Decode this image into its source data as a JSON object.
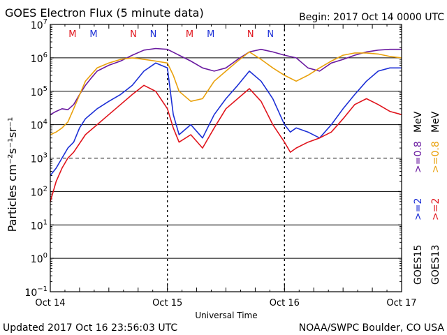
{
  "header": {
    "title": "GOES Electron Flux (5 minute data)",
    "begin": "Begin: 2017 Oct 14 0000 UTC"
  },
  "footer": {
    "updated": "Updated 2017 Oct 16 23:56:03 UTC",
    "credit": "NOAA/SWPC Boulder, CO USA"
  },
  "legend": {
    "goes15": "GOES15",
    "goes13": "GOES13",
    "ge2_15": ">=2",
    "ge2_13": ">=2",
    "ge08_15": ">=0.8",
    "ge08_13": ">=0.8",
    "mev": "MeV"
  },
  "colors": {
    "goes15_ge2": "#1c2fd6",
    "goes13_ge2": "#e0141c",
    "goes15_ge08": "#6a1aa0",
    "goes13_ge08": "#e9a10c",
    "axes": "#000000",
    "background": "#ffffff"
  },
  "chart_data": {
    "type": "line",
    "title": "GOES Electron Flux (5 minute data)",
    "xlabel": "Universal Time",
    "ylabel": "Particles cm⁻²s⁻¹sr⁻¹",
    "x_ticks": [
      "Oct 14",
      "Oct 15",
      "Oct 16",
      "Oct 17"
    ],
    "xlim_days": [
      0,
      3
    ],
    "yscale": "log",
    "ylim": [
      0.1,
      10000000
    ],
    "y_ticks": [
      {
        "base": "10",
        "exp": "7"
      },
      {
        "base": "10",
        "exp": "6"
      },
      {
        "base": "10",
        "exp": "5"
      },
      {
        "base": "10",
        "exp": "4"
      },
      {
        "base": "10",
        "exp": "3"
      },
      {
        "base": "10",
        "exp": "2"
      },
      {
        "base": "10",
        "exp": "1"
      },
      {
        "base": "10",
        "exp": "0"
      },
      {
        "base": "10",
        "exp": "−1"
      }
    ],
    "threshold": 1000,
    "grid": "horizontal at each decade; dashed at 10^3",
    "markers": [
      {
        "label": "M",
        "day": 0.19,
        "color": "#e0141c"
      },
      {
        "label": "M",
        "day": 0.37,
        "color": "#1c2fd6"
      },
      {
        "label": "N",
        "day": 0.71,
        "color": "#e0141c"
      },
      {
        "label": "N",
        "day": 0.88,
        "color": "#1c2fd6"
      },
      {
        "label": "M",
        "day": 1.19,
        "color": "#e0141c"
      },
      {
        "label": "M",
        "day": 1.37,
        "color": "#1c2fd6"
      },
      {
        "label": "N",
        "day": 1.71,
        "color": "#e0141c"
      },
      {
        "label": "N",
        "day": 1.88,
        "color": "#1c2fd6"
      }
    ],
    "series": [
      {
        "name": "GOES15 >=0.8 MeV",
        "color": "#6a1aa0",
        "points": [
          [
            0,
            20000
          ],
          [
            0.05,
            25000
          ],
          [
            0.1,
            30000
          ],
          [
            0.15,
            28000
          ],
          [
            0.2,
            40000
          ],
          [
            0.25,
            80000
          ],
          [
            0.3,
            150000
          ],
          [
            0.35,
            250000
          ],
          [
            0.4,
            400000
          ],
          [
            0.5,
            600000
          ],
          [
            0.6,
            800000
          ],
          [
            0.7,
            1200000
          ],
          [
            0.8,
            1700000
          ],
          [
            0.9,
            1900000
          ],
          [
            1.0,
            1800000
          ],
          [
            1.1,
            1200000
          ],
          [
            1.2,
            800000
          ],
          [
            1.3,
            500000
          ],
          [
            1.4,
            400000
          ],
          [
            1.5,
            500000
          ],
          [
            1.6,
            900000
          ],
          [
            1.7,
            1500000
          ],
          [
            1.8,
            1800000
          ],
          [
            1.9,
            1500000
          ],
          [
            2.0,
            1200000
          ],
          [
            2.1,
            1000000
          ],
          [
            2.2,
            500000
          ],
          [
            2.3,
            400000
          ],
          [
            2.4,
            700000
          ],
          [
            2.5,
            900000
          ],
          [
            2.6,
            1200000
          ],
          [
            2.7,
            1500000
          ],
          [
            2.8,
            1700000
          ],
          [
            2.9,
            1800000
          ],
          [
            3.0,
            1800000
          ]
        ]
      },
      {
        "name": "GOES13 >=0.8 MeV",
        "color": "#e9a10c",
        "points": [
          [
            0,
            5000
          ],
          [
            0.05,
            6000
          ],
          [
            0.1,
            8000
          ],
          [
            0.15,
            12000
          ],
          [
            0.2,
            30000
          ],
          [
            0.3,
            200000
          ],
          [
            0.4,
            500000
          ],
          [
            0.5,
            700000
          ],
          [
            0.6,
            900000
          ],
          [
            0.7,
            1000000
          ],
          [
            0.8,
            900000
          ],
          [
            0.9,
            800000
          ],
          [
            1.0,
            700000
          ],
          [
            1.05,
            300000
          ],
          [
            1.1,
            100000
          ],
          [
            1.2,
            50000
          ],
          [
            1.3,
            60000
          ],
          [
            1.4,
            200000
          ],
          [
            1.5,
            400000
          ],
          [
            1.6,
            800000
          ],
          [
            1.7,
            1500000
          ],
          [
            1.8,
            900000
          ],
          [
            1.9,
            500000
          ],
          [
            2.0,
            300000
          ],
          [
            2.1,
            200000
          ],
          [
            2.2,
            300000
          ],
          [
            2.3,
            500000
          ],
          [
            2.4,
            800000
          ],
          [
            2.5,
            1200000
          ],
          [
            2.6,
            1400000
          ],
          [
            2.7,
            1400000
          ],
          [
            2.8,
            1300000
          ],
          [
            2.9,
            1100000
          ],
          [
            3.0,
            1000000
          ]
        ]
      },
      {
        "name": "GOES15 >=2 MeV",
        "color": "#1c2fd6",
        "points": [
          [
            0,
            300
          ],
          [
            0.05,
            500
          ],
          [
            0.1,
            1000
          ],
          [
            0.15,
            2000
          ],
          [
            0.2,
            3000
          ],
          [
            0.25,
            8000
          ],
          [
            0.3,
            15000
          ],
          [
            0.4,
            30000
          ],
          [
            0.5,
            50000
          ],
          [
            0.6,
            80000
          ],
          [
            0.7,
            150000
          ],
          [
            0.8,
            400000
          ],
          [
            0.9,
            700000
          ],
          [
            1.0,
            500000
          ],
          [
            1.05,
            20000
          ],
          [
            1.1,
            5000
          ],
          [
            1.2,
            10000
          ],
          [
            1.3,
            4000
          ],
          [
            1.4,
            20000
          ],
          [
            1.5,
            60000
          ],
          [
            1.6,
            150000
          ],
          [
            1.7,
            400000
          ],
          [
            1.8,
            200000
          ],
          [
            1.9,
            60000
          ],
          [
            2.0,
            10000
          ],
          [
            2.05,
            6000
          ],
          [
            2.1,
            8000
          ],
          [
            2.2,
            6000
          ],
          [
            2.3,
            4000
          ],
          [
            2.4,
            10000
          ],
          [
            2.5,
            30000
          ],
          [
            2.6,
            80000
          ],
          [
            2.7,
            200000
          ],
          [
            2.8,
            400000
          ],
          [
            2.9,
            500000
          ],
          [
            3.0,
            500000
          ]
        ]
      },
      {
        "name": "GOES13 >=2 MeV",
        "color": "#e0141c",
        "points": [
          [
            0,
            50
          ],
          [
            0.05,
            200
          ],
          [
            0.1,
            500
          ],
          [
            0.15,
            1000
          ],
          [
            0.2,
            1500
          ],
          [
            0.3,
            5000
          ],
          [
            0.4,
            10000
          ],
          [
            0.5,
            20000
          ],
          [
            0.6,
            40000
          ],
          [
            0.7,
            80000
          ],
          [
            0.8,
            150000
          ],
          [
            0.9,
            100000
          ],
          [
            1.0,
            30000
          ],
          [
            1.05,
            8000
          ],
          [
            1.1,
            3000
          ],
          [
            1.2,
            5000
          ],
          [
            1.3,
            2000
          ],
          [
            1.4,
            8000
          ],
          [
            1.5,
            30000
          ],
          [
            1.6,
            60000
          ],
          [
            1.7,
            120000
          ],
          [
            1.8,
            50000
          ],
          [
            1.9,
            10000
          ],
          [
            2.0,
            3000
          ],
          [
            2.05,
            1500
          ],
          [
            2.1,
            2000
          ],
          [
            2.2,
            3000
          ],
          [
            2.3,
            4000
          ],
          [
            2.4,
            6000
          ],
          [
            2.5,
            15000
          ],
          [
            2.6,
            40000
          ],
          [
            2.7,
            60000
          ],
          [
            2.8,
            40000
          ],
          [
            2.9,
            25000
          ],
          [
            3.0,
            20000
          ]
        ]
      }
    ]
  }
}
